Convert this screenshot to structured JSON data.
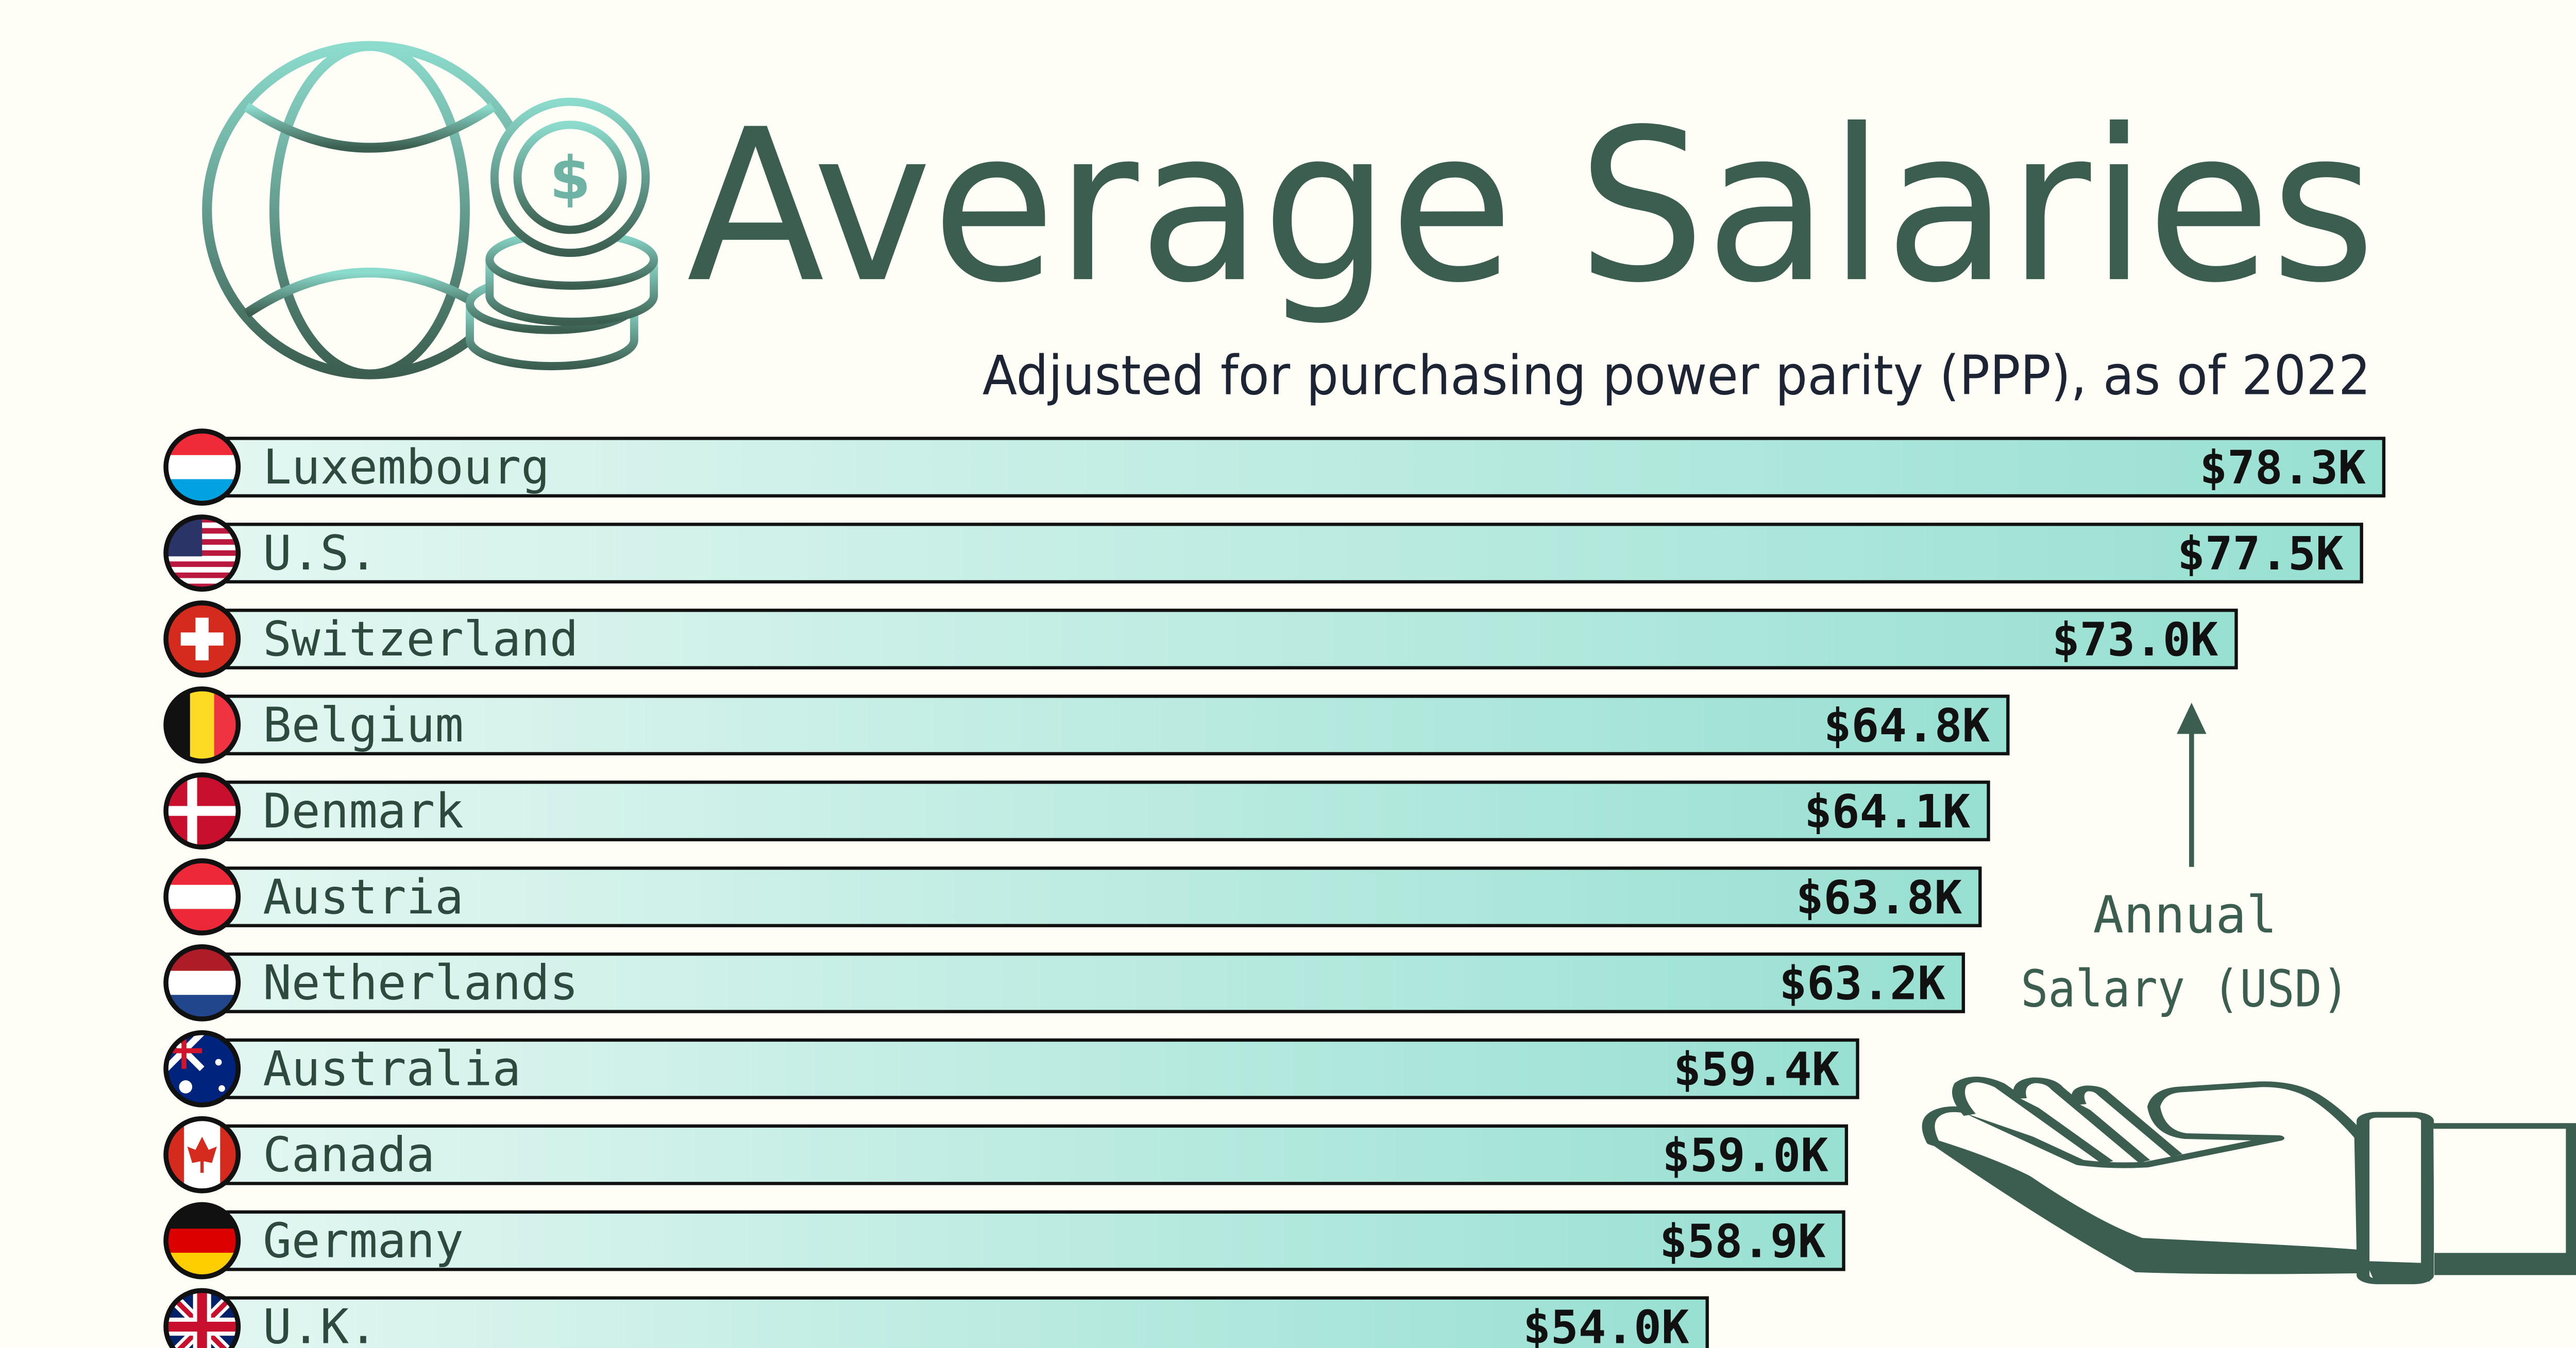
{
  "title": "Average Salaries",
  "subtitle": "Adjusted for purchasing power parity (PPP), as of 2022",
  "annotation": {
    "line1": "Annual",
    "line2": "Salary (USD)"
  },
  "colors": {
    "accent": "#3b5e50",
    "bar_start": "#e3f7f1",
    "bar_end": "#98e0d2",
    "background": "#fefef6"
  },
  "icons": [
    "globe-icon",
    "dollar-coin-stack-icon",
    "open-hand-icon",
    "arrow-up-icon"
  ],
  "chart_data": {
    "type": "bar",
    "orientation": "horizontal",
    "unit": "USD thousands",
    "categories": [
      "Luxembourg",
      "U.S.",
      "Switzerland",
      "Belgium",
      "Denmark",
      "Austria",
      "Netherlands",
      "Australia",
      "Canada",
      "Germany",
      "U.K."
    ],
    "values": [
      78.3,
      77.5,
      73.0,
      64.8,
      64.1,
      63.8,
      63.2,
      59.4,
      59.0,
      58.9,
      54.0
    ],
    "labels": [
      "$78.3K",
      "$77.5K",
      "$73.0K",
      "$64.8K",
      "$64.1K",
      "$63.8K",
      "$63.2K",
      "$59.4K",
      "$59.0K",
      "$58.9K",
      "$54.0K"
    ],
    "xlim": [
      0,
      78.3
    ],
    "grid": false,
    "legend": "none"
  }
}
